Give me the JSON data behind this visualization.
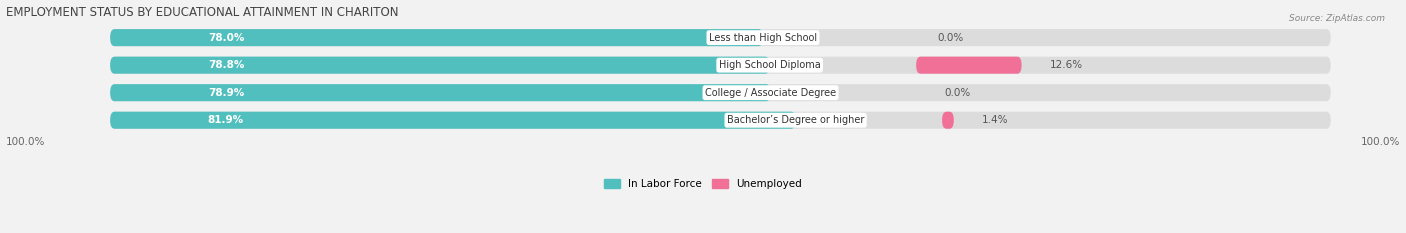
{
  "title": "EMPLOYMENT STATUS BY EDUCATIONAL ATTAINMENT IN CHARITON",
  "source": "Source: ZipAtlas.com",
  "categories": [
    "Less than High School",
    "High School Diploma",
    "College / Associate Degree",
    "Bachelor’s Degree or higher"
  ],
  "in_labor_force": [
    78.0,
    78.8,
    78.9,
    81.9
  ],
  "unemployed": [
    0.0,
    12.6,
    0.0,
    1.4
  ],
  "labor_color": "#52bfbf",
  "unemployed_color": "#f07098",
  "row_pill_color": "#dcdcdc",
  "row_bg_color": "#f2f2f2",
  "axis_label_left": "100.0%",
  "axis_label_right": "100.0%",
  "label_color": "#555555",
  "title_color": "#444444",
  "source_color": "#888888",
  "figsize": [
    14.06,
    2.33
  ],
  "dpi": 100
}
